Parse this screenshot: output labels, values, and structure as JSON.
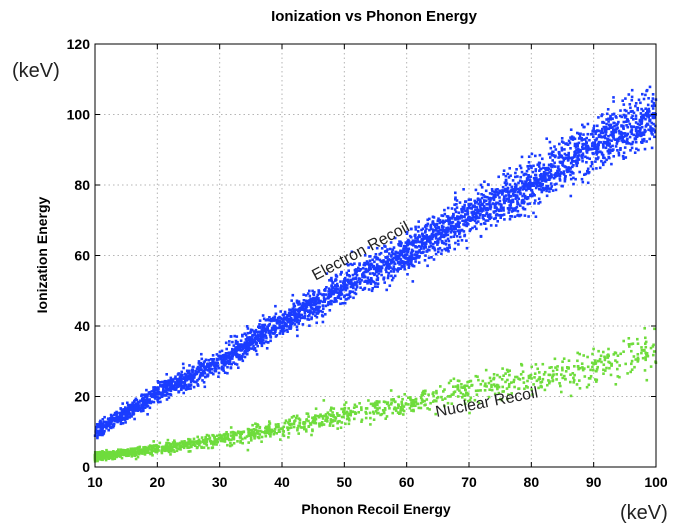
{
  "chart_data": {
    "type": "scatter",
    "title": "Ionization vs Phonon Energy",
    "xlabel": "Phonon Recoil Energy",
    "ylabel": "Ionization Energy",
    "x_unit": "(keV)",
    "y_unit": "(keV)",
    "xlim": [
      10,
      100
    ],
    "ylim": [
      0,
      120
    ],
    "x_ticks": [
      10,
      20,
      30,
      40,
      50,
      60,
      70,
      80,
      90,
      100
    ],
    "y_ticks": [
      0,
      20,
      40,
      60,
      80,
      100,
      120
    ],
    "grid": true,
    "annotations": [
      {
        "text": "Electron Recoil",
        "x": 53,
        "y": 60,
        "series": "electron"
      },
      {
        "text": "Nuclear Recoil",
        "x": 73,
        "y": 17,
        "series": "nuclear"
      }
    ],
    "series": [
      {
        "id": "electron",
        "color": "#1a3cff",
        "point_count": 3600,
        "x_range": [
          10,
          100
        ],
        "trend": [
          [
            10,
            10
          ],
          [
            20,
            21
          ],
          [
            30,
            30
          ],
          [
            40,
            41
          ],
          [
            50,
            51
          ],
          [
            60,
            61
          ],
          [
            70,
            71
          ],
          [
            80,
            80
          ],
          [
            90,
            91
          ],
          [
            100,
            100
          ]
        ],
        "spread_y": [
          2,
          8
        ]
      },
      {
        "id": "nuclear",
        "color": "#6fdc3c",
        "point_count": 1500,
        "x_range": [
          10,
          100
        ],
        "trend": [
          [
            10,
            3
          ],
          [
            20,
            5
          ],
          [
            30,
            8
          ],
          [
            40,
            11
          ],
          [
            50,
            15
          ],
          [
            60,
            18
          ],
          [
            70,
            22
          ],
          [
            80,
            25
          ],
          [
            90,
            29
          ],
          [
            100,
            33
          ]
        ],
        "spread_y": [
          1,
          6
        ]
      }
    ]
  }
}
